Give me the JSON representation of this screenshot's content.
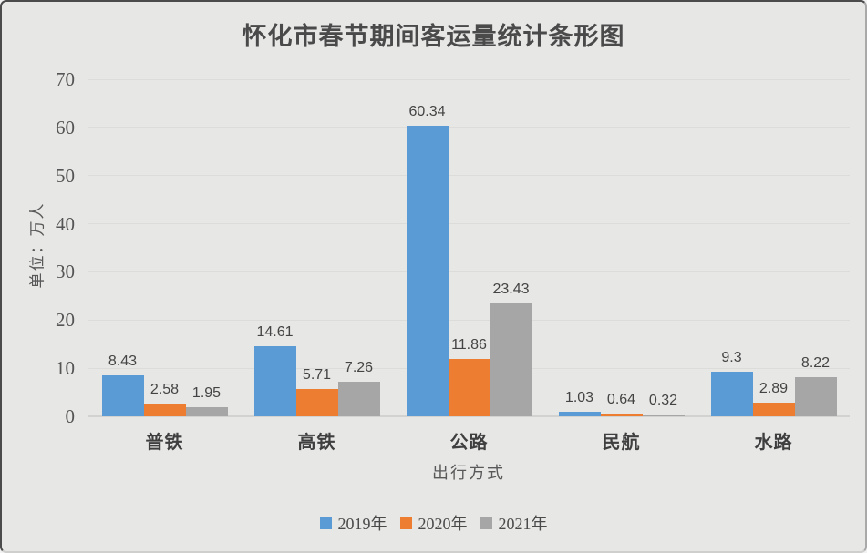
{
  "frame": {
    "background_color": "#e7e7e6"
  },
  "chart_data": {
    "type": "bar",
    "title": "怀化市春节期间客运量统计条形图",
    "xlabel": "出行方式",
    "ylabel": "单位：万人",
    "categories": [
      "普铁",
      "高铁",
      "公路",
      "民航",
      "水路"
    ],
    "series": [
      {
        "name": "2019年",
        "color": "#5b9bd5",
        "values": [
          8.43,
          14.61,
          60.34,
          1.03,
          9.3
        ]
      },
      {
        "name": "2020年",
        "color": "#ed7d31",
        "values": [
          2.58,
          5.71,
          11.86,
          0.64,
          2.89
        ]
      },
      {
        "name": "2021年",
        "color": "#a6a6a6",
        "values": [
          1.95,
          7.26,
          23.43,
          0.32,
          8.22
        ]
      }
    ],
    "ylim": [
      0,
      70
    ],
    "yticks": [
      0,
      10,
      20,
      30,
      40,
      50,
      60,
      70
    ],
    "grid": true,
    "data_labels": true,
    "legend_position": "bottom"
  }
}
